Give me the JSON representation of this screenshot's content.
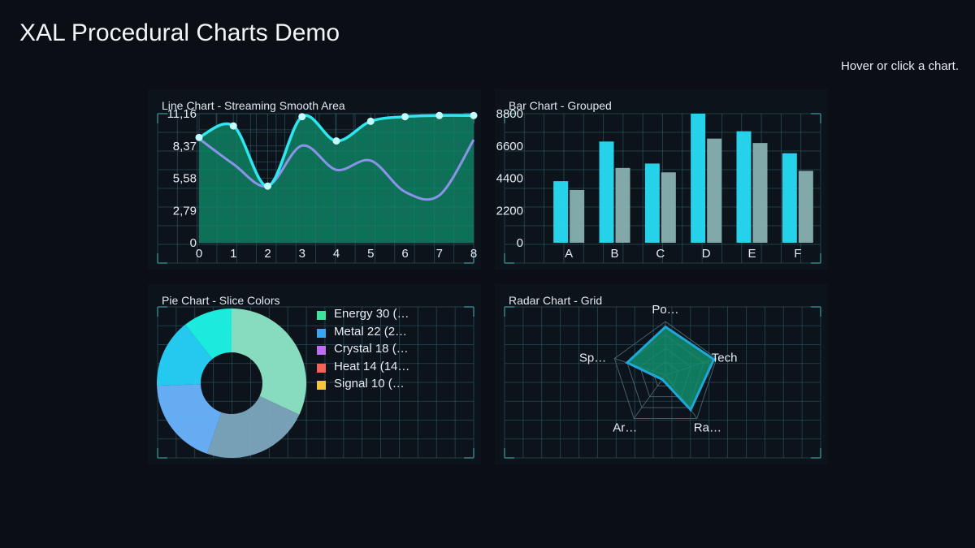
{
  "app": {
    "title": "XAL Procedural Charts Demo",
    "hint": "Hover or click a chart."
  },
  "colors": {
    "background": "#0b0e15",
    "panel": "#0d131b",
    "grid": "#2c5c66",
    "cyan": "#22ddf4",
    "teal_fill": "#0e8a66"
  },
  "chart_data": [
    {
      "type": "area",
      "title": "Line Chart - Streaming Smooth Area",
      "x": [
        0,
        1,
        2,
        3,
        4,
        5,
        6,
        7,
        8
      ],
      "ylim": [
        0,
        11.16
      ],
      "y_ticks": [
        "0",
        "2,79",
        "5,58",
        "8,37",
        "11,16"
      ],
      "x_ticks": [
        "0",
        "1",
        "2",
        "3",
        "4",
        "5",
        "6",
        "7",
        "8"
      ],
      "series": [
        {
          "values": [
            9.1,
            10.1,
            4.9,
            10.9,
            8.8,
            10.5,
            10.9,
            11.0,
            11.0
          ],
          "color": "#2ee6f0",
          "fill": "#0e8a66"
        },
        {
          "values": [
            9.0,
            6.8,
            4.9,
            8.4,
            6.3,
            7.1,
            4.4,
            4.1,
            8.9
          ],
          "color": "#8a93e8"
        }
      ],
      "grid": true
    },
    {
      "type": "bar",
      "title": "Bar Chart - Grouped",
      "categories": [
        "A",
        "B",
        "C",
        "D",
        "E",
        "F"
      ],
      "ylim": [
        0,
        8800
      ],
      "y_ticks": [
        "0",
        "2200",
        "4400",
        "6600",
        "8800"
      ],
      "series": [
        {
          "values": [
            4200,
            6900,
            5400,
            8800,
            7600,
            6100
          ],
          "color": "#27dcf6"
        },
        {
          "values": [
            3600,
            5100,
            4800,
            7100,
            6800,
            4900
          ],
          "color": "#89b1b1"
        }
      ],
      "grid": true
    },
    {
      "type": "pie",
      "title": "Pie Chart - Slice Colors",
      "labels": [
        "Energy",
        "Metal",
        "Crystal",
        "Heat",
        "Signal"
      ],
      "values": [
        30,
        22,
        18,
        14,
        10
      ],
      "legend": [
        {
          "label": "Energy  30 (…",
          "color": "#3ee29a"
        },
        {
          "label": "Metal  22 (2…",
          "color": "#3aa5f2"
        },
        {
          "label": "Crystal  18 (…",
          "color": "#bd6ef2"
        },
        {
          "label": "Heat  14 (14…",
          "color": "#f0645a"
        },
        {
          "label": "Signal  10 (…",
          "color": "#f5c43a"
        }
      ],
      "slice_colors": [
        "#8ee6c8",
        "#7da8c0",
        "#6ab4ff",
        "#27d3fb",
        "#1cf5e8"
      ],
      "legend_position": "right",
      "grid": true
    },
    {
      "type": "radar",
      "title": "Radar Chart - Grid",
      "axes": [
        "Po…",
        "Tech",
        "Ra…",
        "Ar…",
        "Sp…"
      ],
      "values": [
        0.9,
        0.95,
        0.8,
        0.1,
        0.75
      ],
      "max": 1,
      "color": "#1ea7d8",
      "fill": "#138d6a",
      "grid": true
    }
  ]
}
